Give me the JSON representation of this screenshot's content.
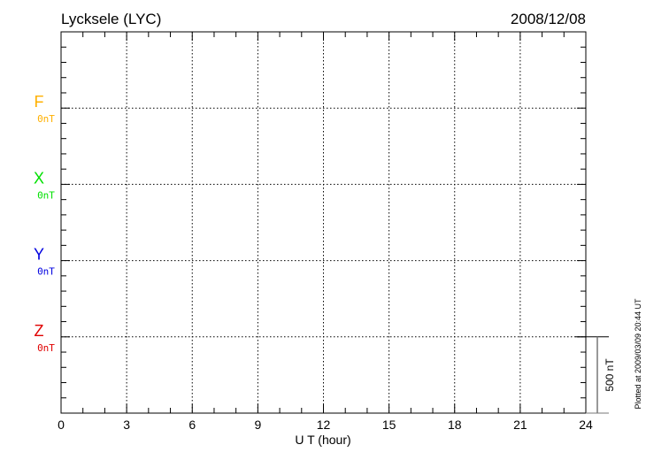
{
  "chart_data": {
    "type": "line",
    "title": "Lycksele (LYC)",
    "date": "2008/12/08",
    "xlabel": "U T (hour)",
    "xlim": [
      0,
      24
    ],
    "xticks": [
      "0",
      "3",
      "6",
      "9",
      "12",
      "15",
      "18",
      "21",
      "24"
    ],
    "grid": true,
    "series": [
      {
        "name": "F",
        "baseline_label": "0nT",
        "color": "#ffb000",
        "values": []
      },
      {
        "name": "X",
        "baseline_label": "0nT",
        "color": "#00e000",
        "values": []
      },
      {
        "name": "Y",
        "baseline_label": "0nT",
        "color": "#0000e0",
        "values": []
      },
      {
        "name": "Z",
        "baseline_label": "0nT",
        "color": "#e00000",
        "values": []
      }
    ],
    "scale_bar_label": "500 nT",
    "scale_bar_nT": 500,
    "footer": "Plotted at 2009/03/09 20:44 UT"
  }
}
